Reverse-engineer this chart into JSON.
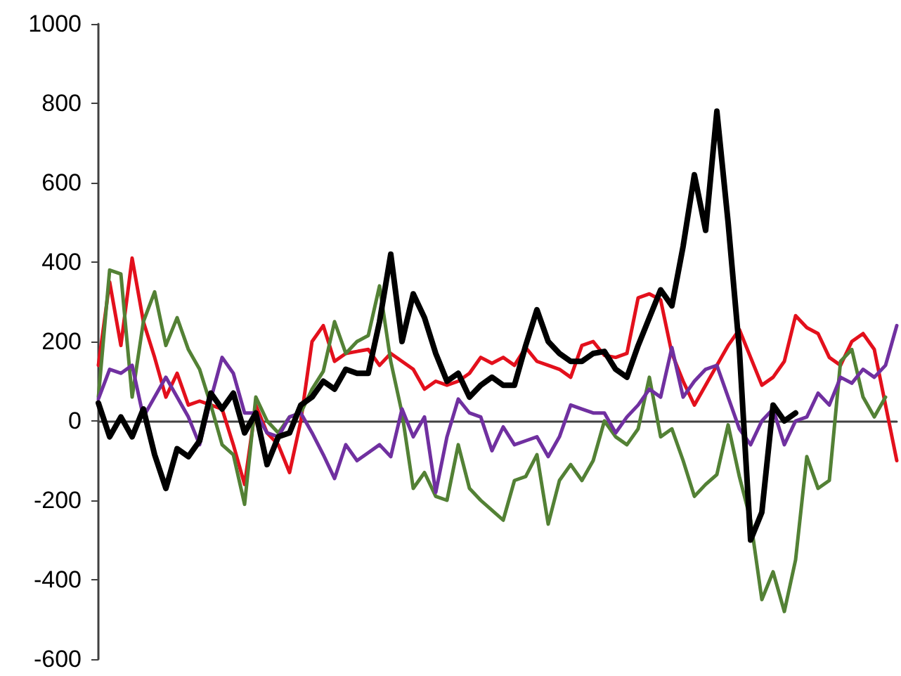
{
  "chart_data": {
    "type": "line",
    "categories": [
      null,
      null,
      null,
      null,
      null,
      null,
      null,
      null,
      null,
      null,
      null,
      null,
      null,
      null,
      null,
      null,
      null,
      null,
      null,
      null,
      null,
      null,
      null,
      null,
      null,
      null,
      null,
      null,
      null,
      null,
      null,
      null,
      null,
      null,
      null,
      null,
      null,
      null,
      null,
      null,
      null,
      null,
      null,
      null,
      null,
      null,
      null,
      null,
      null,
      null,
      null,
      null,
      null,
      null,
      null,
      null,
      null,
      null,
      null,
      null,
      null,
      null,
      null,
      null,
      null,
      null,
      null,
      null,
      null,
      null,
      null,
      null
    ],
    "ylim": [
      -600,
      1000
    ],
    "yticks": [
      -600,
      -400,
      -200,
      0,
      200,
      400,
      600,
      800,
      1000
    ],
    "line_style": "solid",
    "tick_labels": "y",
    "series": [
      {
        "color": "#e3101c",
        "values": [
          140,
          350,
          190,
          410,
          250,
          160,
          60,
          120,
          40,
          50,
          40,
          30,
          -60,
          -160,
          40,
          -30,
          -60,
          -130,
          0,
          200,
          240,
          150,
          170,
          175,
          180,
          140,
          170,
          150,
          130,
          80,
          100,
          90,
          100,
          120,
          160,
          145,
          160,
          140,
          185,
          150,
          140,
          130,
          110,
          190,
          200,
          165,
          160,
          170,
          310,
          320,
          305,
          170,
          100,
          40,
          90,
          140,
          190,
          230,
          160,
          90,
          110,
          150,
          265,
          235,
          220,
          160,
          140,
          200,
          220,
          180,
          40,
          -100
        ]
      },
      {
        "color": "#538135",
        "values": [
          60,
          380,
          370,
          60,
          250,
          325,
          190,
          260,
          180,
          130,
          40,
          -60,
          -85,
          -210,
          60,
          0,
          -30,
          10,
          20,
          80,
          125,
          250,
          170,
          200,
          215,
          340,
          150,
          20,
          -170,
          -130,
          -190,
          -200,
          -60,
          -170,
          -200,
          -225,
          -250,
          -150,
          -140,
          -85,
          -260,
          -150,
          -110,
          -150,
          -100,
          0,
          -40,
          -60,
          -20,
          110,
          -40,
          -20,
          -100,
          -190,
          -160,
          -135,
          -10,
          -140,
          -250,
          -450,
          -380,
          -480,
          -350,
          -90,
          -170,
          -150,
          150,
          180,
          60,
          10,
          60,
          null
        ]
      },
      {
        "color": "#7030a0",
        "values": [
          55,
          130,
          120,
          140,
          10,
          60,
          110,
          60,
          10,
          -60,
          55,
          160,
          120,
          20,
          20,
          -30,
          -40,
          10,
          20,
          -30,
          -85,
          -145,
          -60,
          -100,
          -80,
          -60,
          -90,
          30,
          -40,
          10,
          -180,
          -40,
          55,
          20,
          10,
          -75,
          -15,
          -60,
          -50,
          -40,
          -90,
          -40,
          40,
          30,
          20,
          20,
          -30,
          10,
          40,
          80,
          60,
          185,
          60,
          100,
          130,
          140,
          60,
          -20,
          -60,
          0,
          30,
          -60,
          0,
          10,
          70,
          40,
          110,
          95,
          130,
          110,
          140,
          240
        ]
      },
      {
        "color": "#000000",
        "values": [
          45,
          -40,
          10,
          -40,
          30,
          -85,
          -170,
          -70,
          -90,
          -50,
          70,
          30,
          70,
          -30,
          20,
          -110,
          -40,
          -30,
          40,
          60,
          100,
          80,
          130,
          120,
          120,
          250,
          420,
          200,
          320,
          260,
          170,
          100,
          120,
          60,
          90,
          110,
          90,
          90,
          190,
          280,
          200,
          170,
          150,
          150,
          170,
          175,
          130,
          110,
          190,
          260,
          330,
          290,
          440,
          620,
          480,
          780,
          500,
          180,
          -300,
          -230,
          40,
          0,
          20,
          null,
          null,
          null,
          null,
          null,
          null,
          null,
          null,
          null
        ]
      }
    ]
  }
}
